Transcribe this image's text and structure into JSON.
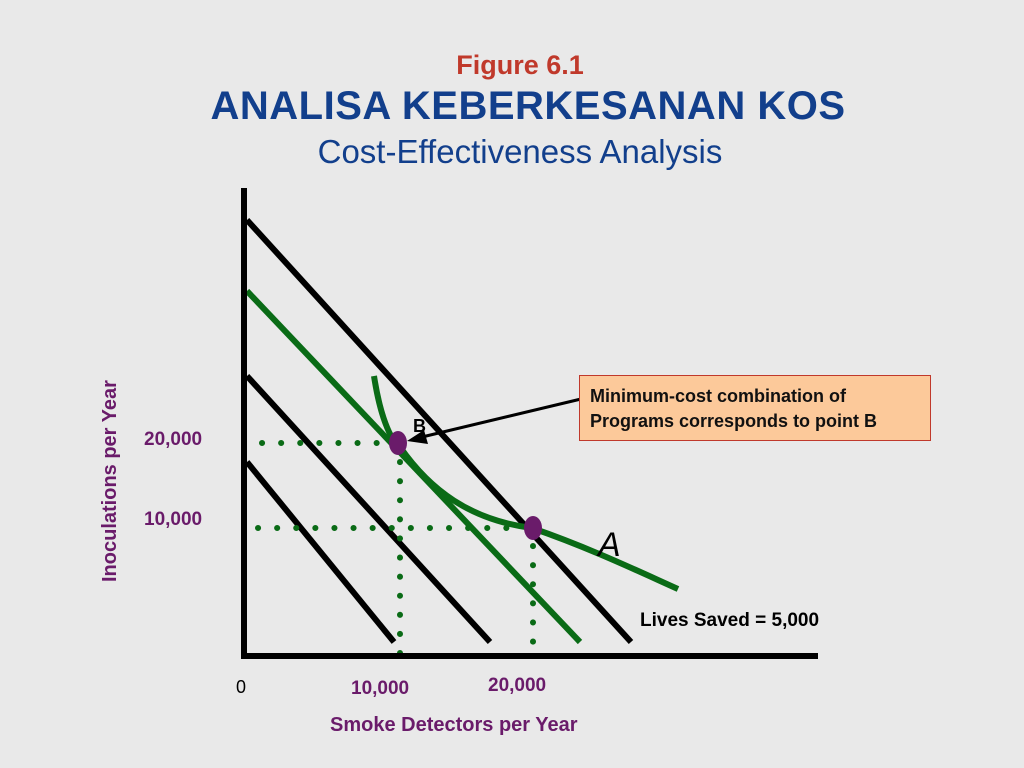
{
  "header": {
    "figure_label": "Figure 6.1",
    "title": "ANALISA KEBERKESANAN KOS",
    "subtitle": "Cost-Effectiveness Analysis"
  },
  "diagram": {
    "y_axis_label": "Inoculations per Year",
    "x_axis_label": "Smoke Detectors per Year",
    "origin_label": "0",
    "x_ticks": [
      "10,000",
      "20,000"
    ],
    "y_ticks": [
      "20,000",
      "10,000"
    ],
    "point_b_label": "B",
    "curve_label": "A",
    "isoquant_label": "Lives Saved = 5,000",
    "callout_lines": [
      "Minimum-cost combination of",
      "Programs corresponds to point B"
    ],
    "colors": {
      "budget_lines": "#000000",
      "tangent_line": "#0a6b16",
      "isoquant": "#0a6b16",
      "points": "#6a1b6a",
      "guides": "#0a6b16",
      "callout_fill": "#fcc99a",
      "callout_border": "#c0392b"
    }
  }
}
